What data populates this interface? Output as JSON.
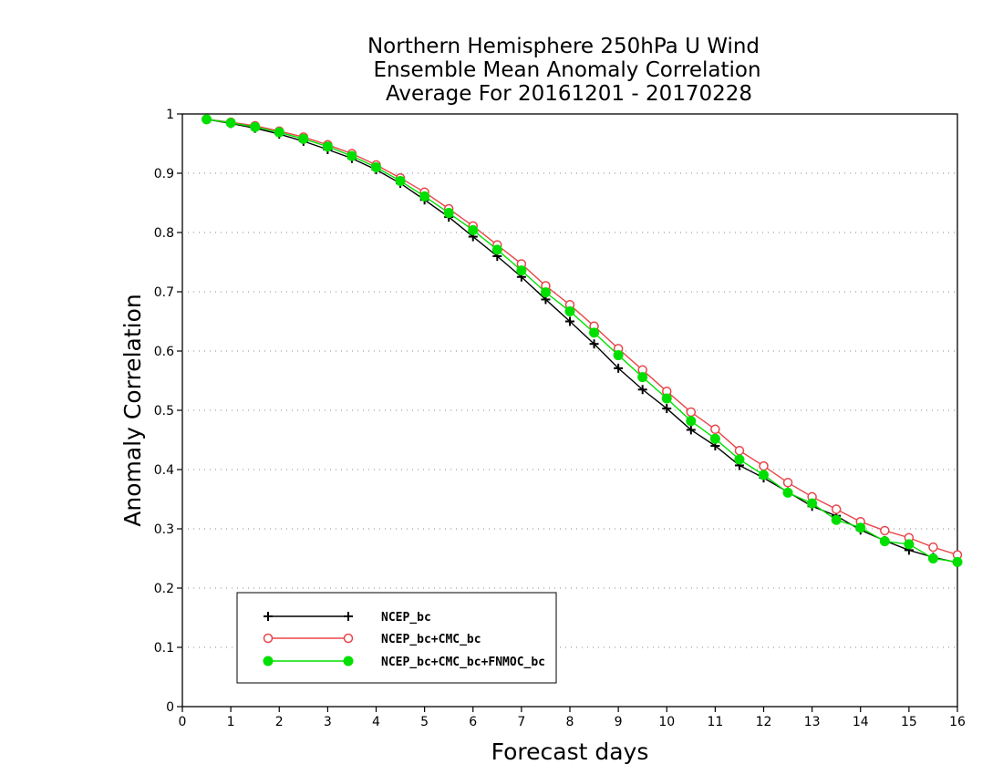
{
  "chart_data": {
    "type": "line",
    "title": [
      "Northern Hemisphere 250hPa U Wind",
      "Ensemble Mean Anomaly Correlation",
      "Average For 20161201 - 20170228"
    ],
    "xlabel": "Forecast days",
    "ylabel": "Anomaly Correlation",
    "xlim": [
      0,
      16
    ],
    "ylim": [
      0,
      1
    ],
    "x_ticks": [
      "0",
      "1",
      "2",
      "3",
      "4",
      "5",
      "6",
      "7",
      "8",
      "9",
      "10",
      "11",
      "12",
      "13",
      "14",
      "15",
      "16"
    ],
    "y_ticks": [
      "0",
      "0.1",
      "0.2",
      "0.3",
      "0.4",
      "0.5",
      "0.6",
      "0.7",
      "0.8",
      "0.9",
      "1"
    ],
    "grid": "horizontal dotted",
    "legend_position": "bottom-left",
    "x": [
      0.5,
      1,
      1.5,
      2,
      2.5,
      3,
      3.5,
      4,
      4.5,
      5,
      5.5,
      6,
      6.5,
      7,
      7.5,
      8,
      8.5,
      9,
      9.5,
      10,
      10.5,
      11,
      11.5,
      12,
      12.5,
      13,
      13.5,
      14,
      14.5,
      15,
      15.5,
      16
    ],
    "series": [
      {
        "name": "NCEP_bc",
        "color": "#000000",
        "marker": "plus",
        "values": [
          0.991,
          0.984,
          0.976,
          0.966,
          0.954,
          0.94,
          0.925,
          0.906,
          0.883,
          0.855,
          0.826,
          0.793,
          0.76,
          0.725,
          0.687,
          0.65,
          0.612,
          0.571,
          0.535,
          0.503,
          0.467,
          0.44,
          0.407,
          0.386,
          0.362,
          0.338,
          0.322,
          0.298,
          0.28,
          0.264,
          0.252,
          0.243
        ]
      },
      {
        "name": "NCEP_bc+CMC_bc",
        "color": "#e8454a",
        "marker": "open-circle",
        "values": [
          0.991,
          0.986,
          0.98,
          0.971,
          0.961,
          0.948,
          0.933,
          0.914,
          0.892,
          0.868,
          0.84,
          0.811,
          0.779,
          0.747,
          0.71,
          0.678,
          0.642,
          0.604,
          0.568,
          0.532,
          0.497,
          0.468,
          0.432,
          0.406,
          0.378,
          0.354,
          0.333,
          0.312,
          0.297,
          0.285,
          0.269,
          0.256
        ]
      },
      {
        "name": "NCEP_bc+CMC_bc+FNMOC_bc",
        "color": "#00e000",
        "marker": "filled-circle",
        "values": [
          0.991,
          0.985,
          0.978,
          0.969,
          0.958,
          0.945,
          0.929,
          0.91,
          0.887,
          0.861,
          0.833,
          0.804,
          0.771,
          0.736,
          0.699,
          0.667,
          0.631,
          0.593,
          0.556,
          0.52,
          0.482,
          0.452,
          0.417,
          0.391,
          0.361,
          0.343,
          0.315,
          0.302,
          0.279,
          0.274,
          0.25,
          0.244
        ]
      }
    ]
  }
}
